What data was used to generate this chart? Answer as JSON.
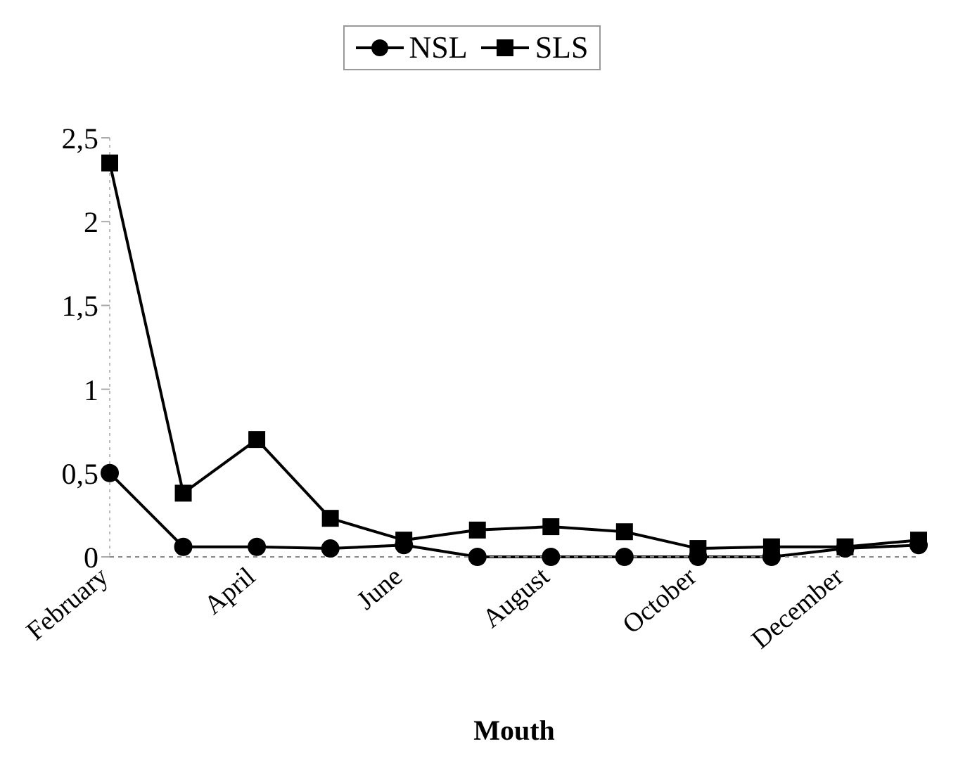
{
  "chart_data": {
    "type": "line",
    "xlabel": "Mouth",
    "categories": [
      "February",
      null,
      "April",
      null,
      "June",
      null,
      "August",
      null,
      "October",
      null,
      "December",
      null
    ],
    "series": [
      {
        "name": "NSL",
        "color": "#000000",
        "marker": "circle",
        "values": [
          0.5,
          0.06,
          0.06,
          0.05,
          0.07,
          0,
          0,
          0,
          0,
          0,
          0.05,
          0.07
        ]
      },
      {
        "name": "SLS",
        "color": "#000000",
        "marker": "square",
        "values": [
          2.35,
          0.38,
          0.7,
          0.23,
          0.1,
          0.16,
          0.18,
          0.15,
          0.05,
          0.06,
          0.06,
          0.1
        ]
      }
    ],
    "ylim": [
      0,
      2.5
    ],
    "yticks": [
      {
        "value": 0,
        "label": "0"
      },
      {
        "value": 0.5,
        "label": "0,5"
      },
      {
        "value": 1,
        "label": "1"
      },
      {
        "value": 1.5,
        "label": "1,5"
      },
      {
        "value": 2,
        "label": "2"
      },
      {
        "value": 2.5,
        "label": "2,5"
      }
    ],
    "grid": false,
    "legend": "top",
    "line_style": "solid"
  }
}
